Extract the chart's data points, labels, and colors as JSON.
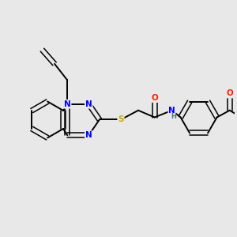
{
  "bg_color": "#e8e8e8",
  "atom_colors": {
    "N": "#0000ff",
    "O": "#ff2200",
    "S": "#ccaa00",
    "C": "#000000",
    "H": "#4a7a7a"
  },
  "figsize": [
    3.0,
    3.0
  ],
  "dpi": 100
}
